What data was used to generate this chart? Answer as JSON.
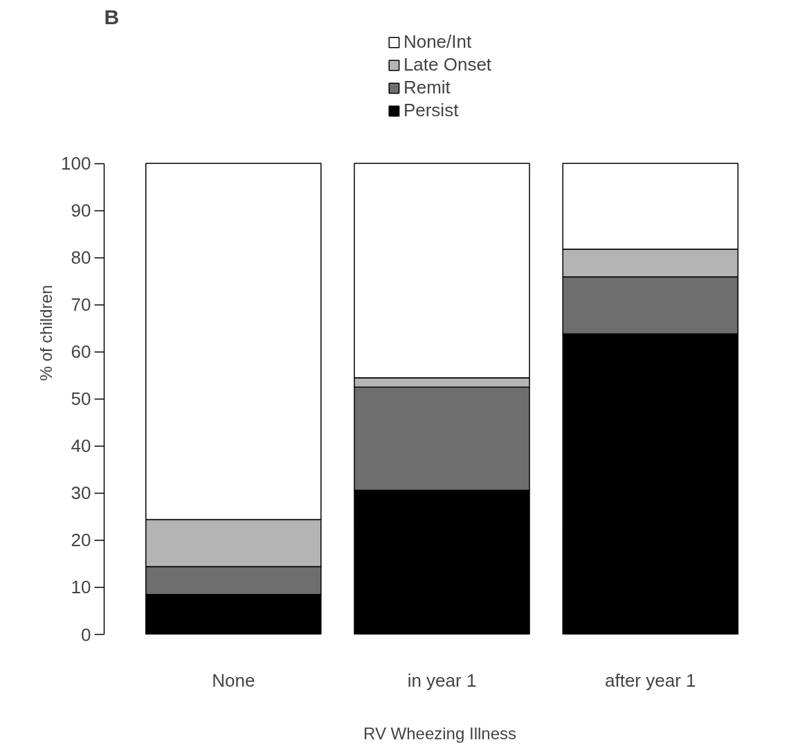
{
  "chart_data": {
    "type": "bar",
    "stacked": true,
    "title": "B",
    "xlabel": "RV Wheezing Illness",
    "ylabel": "% of children",
    "categories": [
      "None",
      "in year 1",
      "after year 1"
    ],
    "series": [
      {
        "name": "Persist",
        "color": "#000000",
        "values": [
          8.5,
          30.6,
          63.8
        ]
      },
      {
        "name": "Remit",
        "color": "#6e6e6e",
        "values": [
          5.9,
          21.9,
          12.1
        ]
      },
      {
        "name": "Late Onset",
        "color": "#b4b4b4",
        "values": [
          10.0,
          2.0,
          5.9
        ]
      },
      {
        "name": "None/Int",
        "color": "#ffffff",
        "values": [
          75.6,
          45.5,
          18.2
        ]
      }
    ],
    "ylim": [
      0,
      100
    ],
    "yticks": [
      0,
      10,
      20,
      30,
      40,
      50,
      60,
      70,
      80,
      90,
      100
    ],
    "grid": false,
    "legend": "top"
  }
}
